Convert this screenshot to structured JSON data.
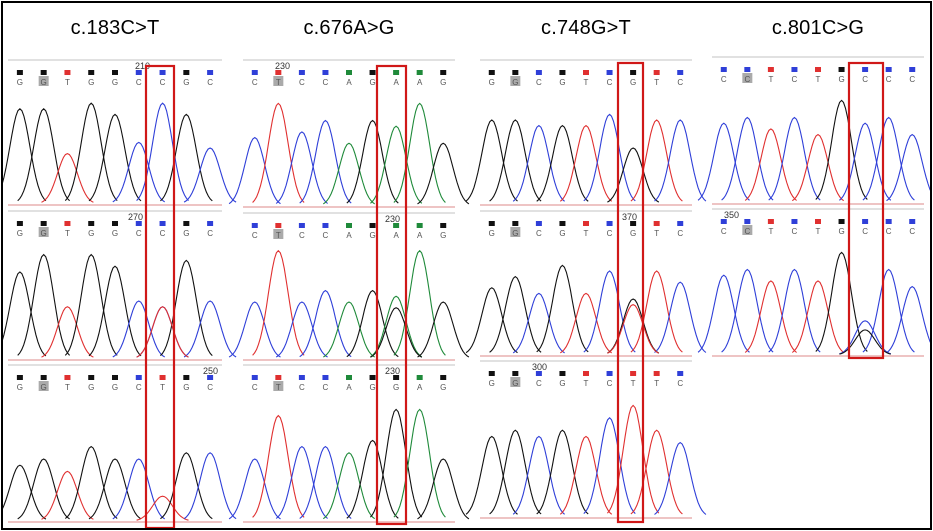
{
  "colors": {
    "A": "#1f8a3a",
    "C": "#2f3fd8",
    "G": "#111111",
    "T": "#e03030",
    "box": "#d01818",
    "baseline": "#bbbbbb"
  },
  "panels": [
    {
      "title": "c.183C>T",
      "traces": [
        {
          "bases": [
            "G",
            "G",
            "T",
            "G",
            "G",
            "C",
            "C",
            "G",
            "C"
          ],
          "peak_heights": [
            0.85,
            0.85,
            0.45,
            0.9,
            0.8,
            0.55,
            0.9,
            0.8,
            0.5
          ],
          "highlighted": [
            false,
            true,
            false,
            false,
            false,
            false,
            false,
            false,
            false
          ],
          "position_label": "210",
          "mixed": false
        },
        {
          "bases": [
            "G",
            "G",
            "T",
            "G",
            "G",
            "C",
            "C",
            "G",
            "C"
          ],
          "peak_heights": [
            0.75,
            0.9,
            0.45,
            0.9,
            0.8,
            0.5,
            0.45,
            0.85,
            0.5
          ],
          "highlighted": [
            false,
            true,
            false,
            false,
            false,
            false,
            false,
            false,
            false
          ],
          "position_label": "270",
          "mixed": true
        },
        {
          "bases": [
            "G",
            "G",
            "T",
            "G",
            "G",
            "C",
            "T",
            "G",
            "C"
          ],
          "peak_heights": [
            0.45,
            0.5,
            0.4,
            0.6,
            0.5,
            0.5,
            0.2,
            0.55,
            0.55
          ],
          "highlighted": [
            false,
            true,
            false,
            false,
            false,
            false,
            false,
            false,
            false
          ],
          "position_label": "250",
          "mixed": false
        }
      ]
    },
    {
      "title": "c.676A>G",
      "traces": [
        {
          "bases": [
            "C",
            "T",
            "C",
            "C",
            "A",
            "G",
            "A",
            "A",
            "G"
          ],
          "peak_heights": [
            0.6,
            0.9,
            0.65,
            0.75,
            0.55,
            0.75,
            0.7,
            0.9,
            0.55
          ],
          "highlighted": [
            false,
            true,
            false,
            false,
            false,
            false,
            false,
            false,
            false
          ],
          "position_label": "230",
          "mixed": false
        },
        {
          "bases": [
            "C",
            "T",
            "C",
            "C",
            "A",
            "G",
            "A",
            "A",
            "G"
          ],
          "peak_heights": [
            0.5,
            0.95,
            0.5,
            0.6,
            0.5,
            0.6,
            0.55,
            0.95,
            0.5
          ],
          "highlighted": [
            false,
            true,
            false,
            false,
            false,
            false,
            false,
            false,
            false
          ],
          "position_label": "230",
          "mixed": true
        },
        {
          "bases": [
            "C",
            "T",
            "C",
            "C",
            "A",
            "G",
            "G",
            "A",
            "G"
          ],
          "peak_heights": [
            0.5,
            0.85,
            0.6,
            0.6,
            0.55,
            0.65,
            0.9,
            0.9,
            0.5
          ],
          "highlighted": [
            false,
            true,
            false,
            false,
            false,
            false,
            false,
            false,
            false
          ],
          "position_label": "230",
          "mixed": false
        }
      ]
    },
    {
      "title": "c.748G>T",
      "traces": [
        {
          "bases": [
            "G",
            "G",
            "C",
            "G",
            "T",
            "C",
            "G",
            "T",
            "C"
          ],
          "peak_heights": [
            0.75,
            0.75,
            0.7,
            0.7,
            0.7,
            0.8,
            0.5,
            0.75,
            0.75
          ],
          "highlighted": [
            false,
            true,
            false,
            false,
            false,
            false,
            false,
            false,
            false
          ],
          "position_label": "",
          "mixed": false
        },
        {
          "bases": [
            "G",
            "G",
            "C",
            "G",
            "T",
            "C",
            "G",
            "T",
            "C"
          ],
          "peak_heights": [
            0.6,
            0.7,
            0.55,
            0.8,
            0.55,
            0.75,
            0.5,
            0.75,
            0.65
          ],
          "highlighted": [
            false,
            true,
            false,
            false,
            false,
            false,
            false,
            false,
            false
          ],
          "position_label": "370",
          "mixed": true
        },
        {
          "bases": [
            "G",
            "G",
            "C",
            "G",
            "T",
            "C",
            "T",
            "T",
            "C"
          ],
          "peak_heights": [
            0.65,
            0.7,
            0.65,
            0.7,
            0.65,
            0.8,
            0.9,
            0.7,
            0.6
          ],
          "highlighted": [
            false,
            true,
            false,
            false,
            false,
            false,
            false,
            false,
            false
          ],
          "position_label": "300",
          "mixed": false
        }
      ]
    },
    {
      "title": "c.801C>G",
      "traces": [
        {
          "bases": [
            "C",
            "C",
            "T",
            "C",
            "T",
            "G",
            "C",
            "C",
            "C"
          ],
          "peak_heights": [
            0.7,
            0.75,
            0.65,
            0.75,
            0.6,
            0.9,
            0.7,
            0.75,
            0.6
          ],
          "highlighted": [
            false,
            true,
            false,
            false,
            false,
            false,
            false,
            false,
            false
          ],
          "position_label": "",
          "mixed": false
        },
        {
          "bases": [
            "C",
            "C",
            "T",
            "C",
            "T",
            "G",
            "C",
            "C",
            "C"
          ],
          "peak_heights": [
            0.7,
            0.75,
            0.65,
            0.75,
            0.65,
            0.9,
            0.3,
            0.75,
            0.6
          ],
          "highlighted": [
            false,
            true,
            false,
            false,
            false,
            false,
            false,
            false,
            false
          ],
          "position_label": "350",
          "mixed": true
        }
      ]
    }
  ]
}
